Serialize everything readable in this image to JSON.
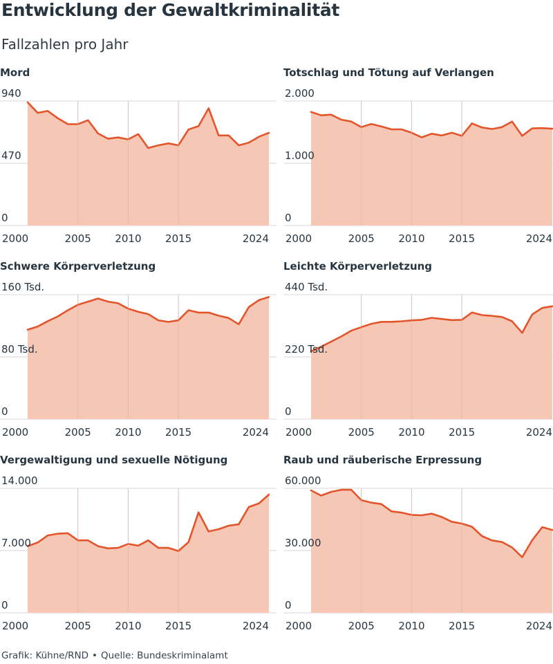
{
  "header": {
    "title": "Entwicklung der Gewaltkriminalität",
    "subtitle": "Fallzahlen pro Jahr"
  },
  "footer": {
    "grafik": "Grafik: Kühne/RND",
    "separator": "•",
    "quelle": "Quelle: Bundeskriminalamt"
  },
  "colors": {
    "line": "#e3542a",
    "area": "#f7c7b5",
    "grid": "#d9d9d9",
    "text": "#273540"
  },
  "chart_data": [
    {
      "type": "area",
      "title": "Mord",
      "x": [
        2000,
        2001,
        2002,
        2003,
        2004,
        2005,
        2006,
        2007,
        2008,
        2009,
        2010,
        2011,
        2012,
        2013,
        2014,
        2015,
        2016,
        2017,
        2018,
        2019,
        2020,
        2021,
        2022,
        2023,
        2024
      ],
      "values": [
        930,
        850,
        865,
        810,
        765,
        765,
        795,
        695,
        655,
        665,
        650,
        690,
        585,
        605,
        620,
        605,
        725,
        750,
        885,
        680,
        680,
        605,
        625,
        670,
        700
      ],
      "ylim": [
        0,
        940
      ],
      "yticks": [
        0,
        470,
        940
      ],
      "ytick_labels": [
        "0",
        "470",
        "940"
      ],
      "xtick_labels": [
        "2000",
        "2005",
        "2010",
        "2015",
        "2024"
      ]
    },
    {
      "type": "area",
      "title": "Totschlag und Tötung auf Verlangen",
      "x": [
        2000,
        2001,
        2002,
        2003,
        2004,
        2005,
        2006,
        2007,
        2008,
        2009,
        2010,
        2011,
        2012,
        2013,
        2014,
        2015,
        2016,
        2017,
        2018,
        2019,
        2020,
        2021,
        2022,
        2023,
        2024
      ],
      "values": [
        1825,
        1770,
        1780,
        1700,
        1670,
        1580,
        1630,
        1590,
        1545,
        1545,
        1490,
        1415,
        1475,
        1445,
        1490,
        1440,
        1640,
        1575,
        1550,
        1580,
        1670,
        1440,
        1560,
        1565,
        1555
      ],
      "ylim": [
        0,
        2000
      ],
      "yticks": [
        0,
        1000,
        2000
      ],
      "ytick_labels": [
        "0",
        "1.000",
        "2.000"
      ],
      "xtick_labels": [
        "2000",
        "2005",
        "2010",
        "2015",
        "2024"
      ]
    },
    {
      "type": "area",
      "title": "Schwere Körperverletzung",
      "x": [
        2000,
        2001,
        2002,
        2003,
        2004,
        2005,
        2006,
        2007,
        2008,
        2009,
        2010,
        2011,
        2012,
        2013,
        2014,
        2015,
        2016,
        2017,
        2018,
        2019,
        2020,
        2021,
        2022,
        2023,
        2024
      ],
      "values": [
        115000,
        119000,
        126000,
        132000,
        140000,
        147000,
        151000,
        155000,
        151000,
        149000,
        142000,
        138000,
        135000,
        127000,
        125000,
        127000,
        140000,
        137000,
        137000,
        133000,
        130000,
        122000,
        144000,
        153000,
        157000
      ],
      "ylim": [
        0,
        160000
      ],
      "yticks": [
        0,
        80000,
        160000
      ],
      "ytick_labels": [
        "0",
        "80 Tsd.",
        "160 Tsd."
      ],
      "xtick_labels": [
        "2000",
        "2005",
        "2010",
        "2015",
        "2024"
      ]
    },
    {
      "type": "area",
      "title": "Leichte Körperverletzung",
      "x": [
        2000,
        2001,
        2002,
        2003,
        2004,
        2005,
        2006,
        2007,
        2008,
        2009,
        2010,
        2011,
        2012,
        2013,
        2014,
        2015,
        2016,
        2017,
        2018,
        2019,
        2020,
        2021,
        2022,
        2023,
        2024
      ],
      "values": [
        240000,
        256000,
        274000,
        292000,
        313000,
        325000,
        337000,
        344000,
        344000,
        346000,
        349000,
        351000,
        358000,
        354000,
        350000,
        351000,
        377000,
        368000,
        365000,
        361000,
        346000,
        305000,
        370000,
        393000,
        399000
      ],
      "ylim": [
        0,
        440000
      ],
      "yticks": [
        0,
        220000,
        440000
      ],
      "ytick_labels": [
        "0",
        "220 Tsd.",
        "440 Tsd."
      ],
      "xtick_labels": [
        "2000",
        "2005",
        "2010",
        "2015",
        "2024"
      ]
    },
    {
      "type": "area",
      "title": "Vergewaltigung und sexuelle Nötigung",
      "x": [
        2000,
        2001,
        2002,
        2003,
        2004,
        2005,
        2006,
        2007,
        2008,
        2009,
        2010,
        2011,
        2012,
        2013,
        2014,
        2015,
        2016,
        2017,
        2018,
        2019,
        2020,
        2021,
        2022,
        2023,
        2024
      ],
      "values": [
        7500,
        7900,
        8700,
        8900,
        8950,
        8150,
        8150,
        7500,
        7250,
        7300,
        7750,
        7550,
        8150,
        7300,
        7300,
        6950,
        7950,
        11300,
        9150,
        9400,
        9800,
        9950,
        11900,
        12300,
        13300
      ],
      "ylim": [
        0,
        14000
      ],
      "yticks": [
        0,
        7000,
        14000
      ],
      "ytick_labels": [
        "0",
        "7.000",
        "14.000"
      ],
      "xtick_labels": [
        "2000",
        "2005",
        "2010",
        "2015",
        "2024"
      ]
    },
    {
      "type": "area",
      "title": "Raub und räuberische Erpressung",
      "x": [
        2000,
        2001,
        2002,
        2003,
        2004,
        2005,
        2006,
        2007,
        2008,
        2009,
        2010,
        2011,
        2012,
        2013,
        2014,
        2015,
        2016,
        2017,
        2018,
        2019,
        2020,
        2021,
        2022,
        2023,
        2024
      ],
      "values": [
        59000,
        56500,
        58300,
        59300,
        59300,
        54300,
        53100,
        52400,
        48900,
        48300,
        47200,
        47000,
        47800,
        46200,
        43900,
        43000,
        41500,
        37000,
        34900,
        34100,
        31500,
        26800,
        35000,
        41300,
        39900
      ],
      "ylim": [
        0,
        60000
      ],
      "yticks": [
        0,
        30000,
        60000
      ],
      "ytick_labels": [
        "0",
        "30.000",
        "60.000"
      ],
      "xtick_labels": [
        "2000",
        "2005",
        "2010",
        "2015",
        "2024"
      ]
    }
  ]
}
